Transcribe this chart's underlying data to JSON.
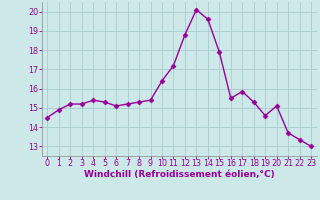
{
  "x": [
    0,
    1,
    2,
    3,
    4,
    5,
    6,
    7,
    8,
    9,
    10,
    11,
    12,
    13,
    14,
    15,
    16,
    17,
    18,
    19,
    20,
    21,
    22,
    23
  ],
  "y": [
    14.5,
    14.9,
    15.2,
    15.2,
    15.4,
    15.3,
    15.1,
    15.2,
    15.3,
    15.4,
    16.4,
    17.2,
    18.8,
    20.1,
    19.6,
    17.9,
    15.5,
    15.85,
    15.3,
    14.6,
    15.1,
    13.7,
    13.35,
    13.0
  ],
  "line_color": "#990099",
  "marker": "D",
  "markersize": 2.5,
  "linewidth": 1.0,
  "bg_color": "#cce8e8",
  "grid_color": "#aacccc",
  "xlabel": "Windchill (Refroidissement éolien,°C)",
  "xlabel_color": "#990099",
  "xlabel_fontsize": 6.5,
  "tick_color": "#990099",
  "tick_fontsize": 5.8,
  "ylim": [
    12.5,
    20.5
  ],
  "xlim": [
    -0.5,
    23.5
  ],
  "yticks": [
    13,
    14,
    15,
    16,
    17,
    18,
    19,
    20
  ],
  "xticks": [
    0,
    1,
    2,
    3,
    4,
    5,
    6,
    7,
    8,
    9,
    10,
    11,
    12,
    13,
    14,
    15,
    16,
    17,
    18,
    19,
    20,
    21,
    22,
    23
  ]
}
